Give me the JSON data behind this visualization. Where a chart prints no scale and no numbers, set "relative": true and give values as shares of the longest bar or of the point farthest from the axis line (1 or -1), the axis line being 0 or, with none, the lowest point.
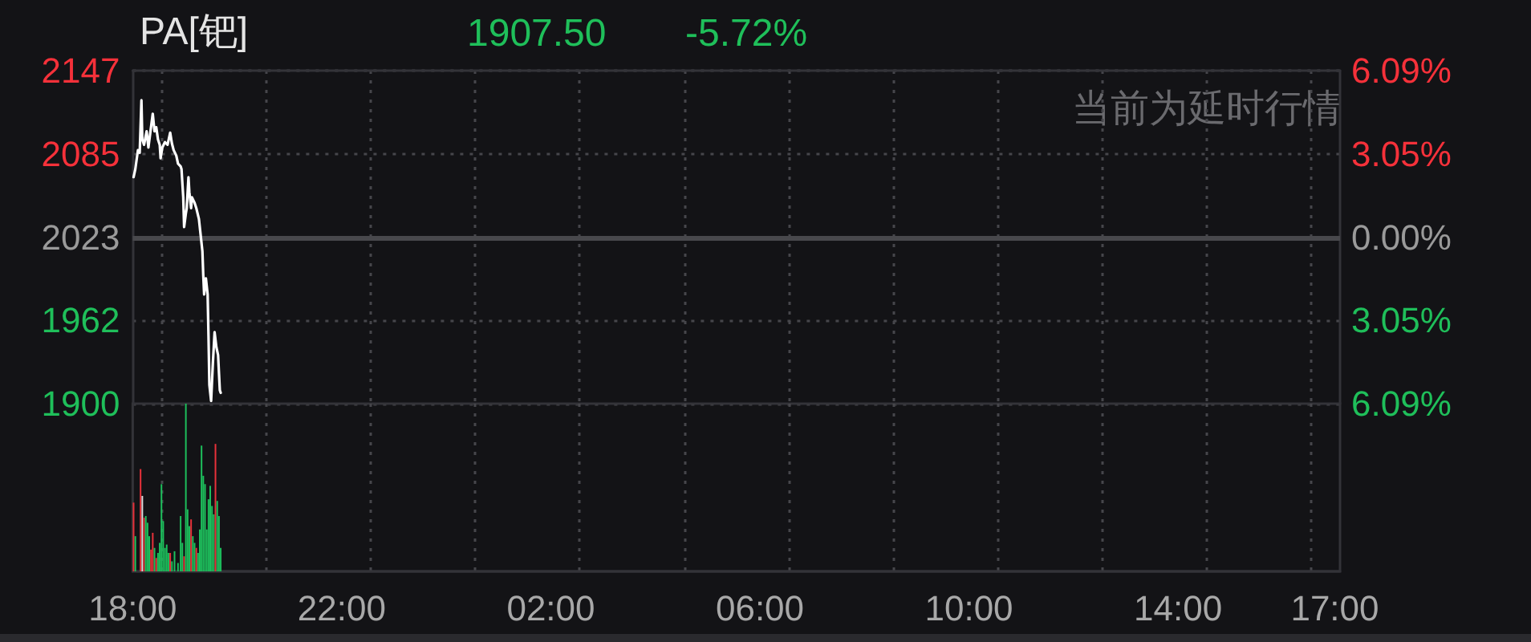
{
  "chart_data": [
    {
      "type": "line",
      "title": "PA[钯]",
      "annotations": [
        "1907.50",
        "-5.72%",
        "当前为延时行情"
      ],
      "x": [
        "2000-01-01T18:01",
        "2000-01-01T18:03",
        "2000-01-01T18:06",
        "2000-01-01T18:08",
        "2000-01-01T18:10",
        "2000-01-01T18:11",
        "2000-01-01T18:13",
        "2000-01-01T18:16",
        "2000-01-01T18:18",
        "2000-01-01T18:21",
        "2000-01-01T18:23",
        "2000-01-01T18:25",
        "2000-01-01T18:27",
        "2000-01-01T18:29",
        "2000-01-01T18:31",
        "2000-01-01T18:32",
        "2000-01-01T18:34",
        "2000-01-01T18:37",
        "2000-01-01T18:40",
        "2000-01-01T18:43",
        "2000-01-01T18:45",
        "2000-01-01T18:47",
        "2000-01-01T18:50",
        "2000-01-01T18:52",
        "2000-01-01T18:55",
        "2000-01-01T18:56",
        "2000-01-01T18:58",
        "2000-01-01T18:59",
        "2000-01-01T19:01",
        "2000-01-01T19:02",
        "2000-01-01T19:04",
        "2000-01-01T19:05",
        "2000-01-01T19:07",
        "2000-01-01T19:08",
        "2000-01-01T19:11",
        "2000-01-01T19:13",
        "2000-01-01T19:16",
        "2000-01-01T19:18",
        "2000-01-01T19:20",
        "2000-01-01T19:21",
        "2000-01-01T19:22",
        "2000-01-01T19:24",
        "2000-01-01T19:26",
        "2000-01-01T19:27",
        "2000-01-01T19:28",
        "2000-01-01T19:30",
        "2000-01-01T19:32",
        "2000-01-01T19:34",
        "2000-01-01T19:36",
        "2000-01-01T19:38",
        "2000-01-01T19:40",
        "2000-01-01T19:41"
      ],
      "series": [
        {
          "color": "#ffffff",
          "values": [
            2068,
            2074,
            2088,
            2086,
            2125,
            2096,
            2092,
            2102,
            2090,
            2105,
            2115,
            2102,
            2105,
            2096,
            2092,
            2082,
            2090,
            2094,
            2092,
            2101,
            2093,
            2088,
            2084,
            2078,
            2076,
            2074,
            2053,
            2031,
            2041,
            2045,
            2068,
            2057,
            2045,
            2053,
            2049,
            2045,
            2037,
            2025,
            2013,
            1995,
            1981,
            1993,
            1981,
            1950,
            1914,
            1902,
            1930,
            1953,
            1942,
            1936,
            1910,
            1908
          ]
        }
      ],
      "xlim": [
        "2000-01-01T18:00",
        "2000-01-02T17:06"
      ],
      "xticks": [
        {
          "value": "2000-01-01T18:33",
          "label": null
        },
        {
          "value": "2000-01-01T20:33",
          "label": null
        },
        {
          "value": "2000-01-01T22:33",
          "label": null
        },
        {
          "value": "2000-01-02T00:33",
          "label": null
        },
        {
          "value": "2000-01-02T02:33",
          "label": null
        },
        {
          "value": "2000-01-02T04:33",
          "label": null
        },
        {
          "value": "2000-01-02T06:33",
          "label": null
        },
        {
          "value": "2000-01-02T08:33",
          "label": null
        },
        {
          "value": "2000-01-02T10:33",
          "label": null
        },
        {
          "value": "2000-01-02T12:33",
          "label": null
        },
        {
          "value": "2000-01-02T14:33",
          "label": null
        },
        {
          "value": "2000-01-02T16:33",
          "label": null
        }
      ],
      "ylim": [
        1900,
        2147
      ],
      "yticks": [
        2147,
        2085,
        2023,
        1962,
        1900
      ],
      "y2lim": [
        -6.09,
        6.09
      ],
      "y2ticks": [
        {
          "value": 6.09,
          "label": "6.09%"
        },
        {
          "value": 3.05,
          "label": "3.05%"
        },
        {
          "value": 0,
          "label": "0.00%"
        },
        {
          "value": -3.05,
          "label": "3.05%"
        },
        {
          "value": -6.09,
          "label": "6.09%"
        }
      ],
      "ref_lines": [
        {
          "axis": "y",
          "value": 2023,
          "color": "#48484c"
        }
      ],
      "grid": true,
      "tick_labels": "y"
    },
    {
      "type": "bar",
      "relative": true,
      "x": [
        "2000-01-01T18:01",
        "2000-01-01T18:03",
        "2000-01-01T18:09",
        "2000-01-01T18:11",
        "2000-01-01T18:13",
        "2000-01-01T18:15",
        "2000-01-01T18:17",
        "2000-01-01T18:19",
        "2000-01-01T18:21",
        "2000-01-01T18:23",
        "2000-01-01T18:25",
        "2000-01-01T18:27",
        "2000-01-01T18:29",
        "2000-01-01T18:31",
        "2000-01-01T18:33",
        "2000-01-01T18:35",
        "2000-01-01T18:37",
        "2000-01-01T18:39",
        "2000-01-01T18:41",
        "2000-01-01T18:43",
        "2000-01-01T18:45",
        "2000-01-01T18:48",
        "2000-01-01T18:52",
        "2000-01-01T18:55",
        "2000-01-01T18:57",
        "2000-01-01T18:59",
        "2000-01-01T19:01",
        "2000-01-01T19:03",
        "2000-01-01T19:05",
        "2000-01-01T19:07",
        "2000-01-01T19:09",
        "2000-01-01T19:11",
        "2000-01-01T19:13",
        "2000-01-01T19:15",
        "2000-01-01T19:17",
        "2000-01-01T19:19",
        "2000-01-01T19:21",
        "2000-01-01T19:23",
        "2000-01-01T19:25",
        "2000-01-01T19:27",
        "2000-01-01T19:29",
        "2000-01-01T19:31",
        "2000-01-01T19:33",
        "2000-01-01T19:35",
        "2000-01-01T19:37",
        "2000-01-01T19:39",
        "2000-01-01T19:41"
      ],
      "values": [
        0.41,
        0.21,
        0.61,
        0.45,
        0.32,
        0.33,
        0.29,
        0.21,
        0.13,
        0.23,
        0.14,
        0.08,
        0.11,
        0.17,
        0.52,
        0.3,
        0.14,
        0.16,
        0.11,
        0.11,
        0.06,
        0.12,
        0.05,
        0.33,
        0.17,
        0.09,
        1,
        0.37,
        0.27,
        0.31,
        0.21,
        0.17,
        0.14,
        0.11,
        0.25,
        0.75,
        0.57,
        0.52,
        0.25,
        0.43,
        0.51,
        0.39,
        0.34,
        0.76,
        0.42,
        0.33,
        0.14
      ],
      "colors": [
        "#e8313a",
        "#1dbf5c",
        "#e8313a",
        "#dcdcdc",
        "#e8313a",
        "#1dbf5c",
        "#1dbf5c",
        "#1dbf5c",
        "#e8313a",
        "#e8313a",
        "#1dbf5c",
        "#e8313a",
        "#1dbf5c",
        "#1dbf5c",
        "#1dbf5c",
        "#1dbf5c",
        "#1dbf5c",
        "#1dbf5c",
        "#1dbf5c",
        "#e8313a",
        "#1dbf5c",
        "#1dbf5c",
        "#1dbf5c",
        "#1dbf5c",
        "#1dbf5c",
        "#e8313a",
        "#1dbf5c",
        "#1dbf5c",
        "#1dbf5c",
        "#e8313a",
        "#1dbf5c",
        "#1dbf5c",
        "#e8313a",
        "#1dbf5c",
        "#1dbf5c",
        "#1dbf5c",
        "#1dbf5c",
        "#1dbf5c",
        "#1dbf5c",
        "#1dbf5c",
        "#1dbf5c",
        "#1dbf5c",
        "#1dbf5c",
        "#e8313a",
        "#1dbf5c",
        "#1dbf5c",
        "#1dbf5c"
      ],
      "xlim": [
        "2000-01-01T18:00",
        "2000-01-02T17:06"
      ],
      "xticks": [
        {
          "value": "2000-01-01T18:00",
          "label": "18:00"
        },
        {
          "value": "2000-01-01T22:00",
          "label": "22:00"
        },
        {
          "value": "2000-01-02T02:00",
          "label": "02:00"
        },
        {
          "value": "2000-01-02T06:00",
          "label": "06:00"
        },
        {
          "value": "2000-01-02T10:00",
          "label": "10:00"
        },
        {
          "value": "2000-01-02T14:00",
          "label": "14:00"
        },
        {
          "value": "2000-01-02T17:00",
          "label": "17:00"
        },
        {
          "value": "2000-01-01T18:33",
          "label": null
        },
        {
          "value": "2000-01-01T20:33",
          "label": null
        },
        {
          "value": "2000-01-01T22:33",
          "label": null
        },
        {
          "value": "2000-01-02T00:33",
          "label": null
        },
        {
          "value": "2000-01-02T02:33",
          "label": null
        },
        {
          "value": "2000-01-02T04:33",
          "label": null
        },
        {
          "value": "2000-01-02T06:33",
          "label": null
        },
        {
          "value": "2000-01-02T08:33",
          "label": null
        },
        {
          "value": "2000-01-02T10:33",
          "label": null
        },
        {
          "value": "2000-01-02T12:33",
          "label": null
        },
        {
          "value": "2000-01-02T14:33",
          "label": null
        },
        {
          "value": "2000-01-02T16:33",
          "label": null
        }
      ],
      "grid": "x",
      "tick_labels": "x"
    }
  ]
}
